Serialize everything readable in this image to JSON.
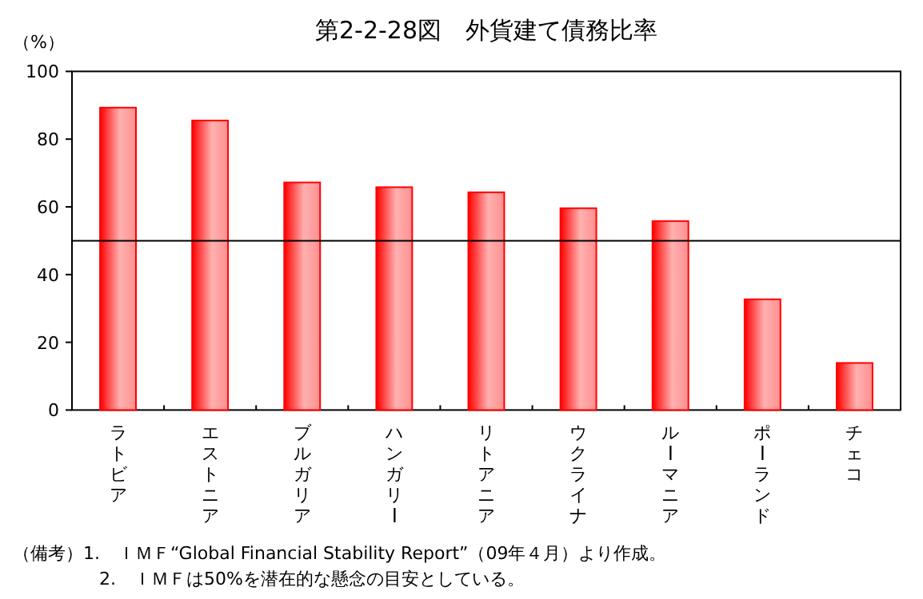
{
  "chart_data": {
    "type": "bar",
    "title": "第2-2-28図　外貨建て債務比率",
    "ylabel": "（%）",
    "categories": [
      "ラトビア",
      "エストニア",
      "ブルガリア",
      "ハンガリー",
      "リトアニア",
      "ウクライナ",
      "ルーマニア",
      "ポーランド",
      "チェコ"
    ],
    "values": [
      89.3,
      85.5,
      67.2,
      65.8,
      64.3,
      59.6,
      55.8,
      32.7,
      13.9
    ],
    "color": "#ff0000",
    "ylim": [
      0,
      100
    ],
    "yticks": [
      0,
      20,
      40,
      60,
      80,
      100
    ],
    "ref_lines": [
      {
        "axis": "y",
        "value": 50,
        "color": "#000000"
      }
    ],
    "annotations": [
      "（備考）1.　ＩＭＦ“Global Financial Stability Report”（09年４月）より作成。",
      "2.　ＩＭＦは50%を潜在的な懸念の目安としている。"
    ]
  }
}
